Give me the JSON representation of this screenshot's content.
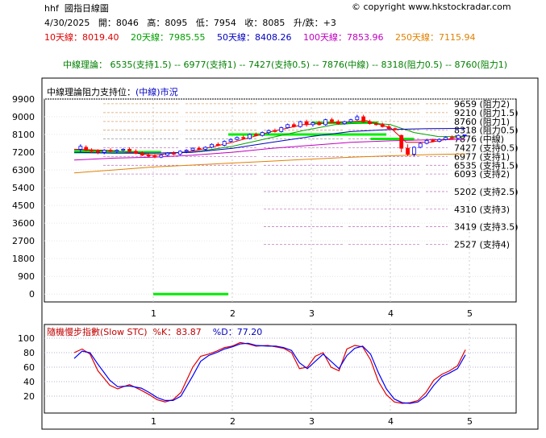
{
  "header": {
    "ticker": "hhf",
    "chart_title": "國指日線圖",
    "copyright": "copyright www.hkstockradar.com",
    "date": "4/30/2025",
    "open_label": "開",
    "open": "8046",
    "high_label": "高",
    "high": "8095",
    "low_label": "低",
    "low": "7954",
    "close_label": "收",
    "close": "8085",
    "change_label": "升/跌",
    "change": "+3"
  },
  "moving_averages": [
    {
      "label": "10天線",
      "value": "8019.40",
      "color": "#e00000"
    },
    {
      "label": "20天線",
      "value": "7985.55",
      "color": "#00a000"
    },
    {
      "label": "50天線",
      "value": "8408.26",
      "color": "#0000c0"
    },
    {
      "label": "100天線",
      "value": "7853.96",
      "color": "#c000c0"
    },
    {
      "label": "250天線",
      "value": "7115.94",
      "color": "#e08000"
    }
  ],
  "theory_line": "中線理論： 6535(支持1.5) -- 6977(支持1) -- 7427(支持0.5) -- 7876(中線) -- 8318(阻力0.5) -- 8760(阻力1)",
  "chart_label_prefix": "中線理論阻力支持位：",
  "chart_label_mid": "(中線)",
  "chart_label_suffix": "市況",
  "stc_title": "隨機慢步指數(Slow STC)",
  "stc_k_label": "%K：",
  "stc_k": "83.87",
  "stc_d_label": "%D：",
  "stc_d": "77.20",
  "colors": {
    "up_candle": "#0000ff",
    "down_candle": "#ff0000",
    "mid_line": "#00ee00",
    "k_line": "#e00000",
    "d_line": "#0000ff"
  },
  "chart_data": [
    {
      "type": "candlestick",
      "ylim": [
        -400,
        9900
      ],
      "yticks": [
        0,
        900,
        1800,
        2700,
        3600,
        4500,
        5400,
        6300,
        7200,
        8100,
        9000,
        9900
      ],
      "xticks": [
        "1",
        "2",
        "3",
        "4",
        "5"
      ],
      "levels": [
        {
          "label": "9659 (阻力2)",
          "value": 9659
        },
        {
          "label": "9210 (阻力1.5)",
          "value": 9210
        },
        {
          "label": "8760 (阻力1)",
          "value": 8760
        },
        {
          "label": "8318 (阻力0.5)",
          "value": 8318
        },
        {
          "label": "7876 (中線)",
          "value": 7876
        },
        {
          "label": "7427 (支持0.5)",
          "value": 7427
        },
        {
          "label": "6977 (支持1)",
          "value": 6977
        },
        {
          "label": "6535 (支持1.5)",
          "value": 6535
        },
        {
          "label": "6093 (支持2)",
          "value": 6093
        },
        {
          "label": "5202 (支持2.5)",
          "value": 5202
        },
        {
          "label": "4310 (支持3)",
          "value": 4310
        },
        {
          "label": "3419 (支持3.5)",
          "value": 3419
        },
        {
          "label": "2527 (支持4)",
          "value": 2527
        }
      ],
      "mid_segments": [
        {
          "from": 0.0,
          "to": 1.1,
          "value": 7200
        },
        {
          "from": 1.0,
          "to": 1.95,
          "value": 0
        },
        {
          "from": 1.95,
          "to": 3.95,
          "value": 8100
        },
        {
          "from": 3.0,
          "to": 3.85,
          "value": 8700
        },
        {
          "from": 3.75,
          "to": 4.3,
          "value": 7876
        }
      ],
      "candles": [
        {
          "x": 0.08,
          "o": 7350,
          "h": 7600,
          "l": 7200,
          "c": 7500
        },
        {
          "x": 0.15,
          "o": 7450,
          "h": 7550,
          "l": 7250,
          "c": 7300
        },
        {
          "x": 0.22,
          "o": 7300,
          "h": 7400,
          "l": 7150,
          "c": 7250
        },
        {
          "x": 0.3,
          "o": 7250,
          "h": 7350,
          "l": 7100,
          "c": 7200
        },
        {
          "x": 0.38,
          "o": 7200,
          "h": 7350,
          "l": 7100,
          "c": 7300
        },
        {
          "x": 0.46,
          "o": 7300,
          "h": 7400,
          "l": 7200,
          "c": 7250
        },
        {
          "x": 0.54,
          "o": 7250,
          "h": 7350,
          "l": 7150,
          "c": 7300
        },
        {
          "x": 0.62,
          "o": 7300,
          "h": 7400,
          "l": 7250,
          "c": 7350
        },
        {
          "x": 0.7,
          "o": 7350,
          "h": 7450,
          "l": 7200,
          "c": 7250
        },
        {
          "x": 0.78,
          "o": 7250,
          "h": 7350,
          "l": 7100,
          "c": 7150
        },
        {
          "x": 0.86,
          "o": 7150,
          "h": 7250,
          "l": 7000,
          "c": 7050
        },
        {
          "x": 0.94,
          "o": 7050,
          "h": 7150,
          "l": 6950,
          "c": 7000
        },
        {
          "x": 1.02,
          "o": 7000,
          "h": 7100,
          "l": 6900,
          "c": 6950
        },
        {
          "x": 1.1,
          "o": 6950,
          "h": 7100,
          "l": 6900,
          "c": 7050
        },
        {
          "x": 1.18,
          "o": 7050,
          "h": 7200,
          "l": 7000,
          "c": 7150
        },
        {
          "x": 1.26,
          "o": 7150,
          "h": 7250,
          "l": 7050,
          "c": 7100
        },
        {
          "x": 1.34,
          "o": 7100,
          "h": 7300,
          "l": 7050,
          "c": 7250
        },
        {
          "x": 1.42,
          "o": 7250,
          "h": 7350,
          "l": 7150,
          "c": 7300
        },
        {
          "x": 1.5,
          "o": 7300,
          "h": 7450,
          "l": 7250,
          "c": 7400
        },
        {
          "x": 1.58,
          "o": 7400,
          "h": 7500,
          "l": 7300,
          "c": 7350
        },
        {
          "x": 1.66,
          "o": 7350,
          "h": 7500,
          "l": 7300,
          "c": 7450
        },
        {
          "x": 1.74,
          "o": 7450,
          "h": 7650,
          "l": 7400,
          "c": 7600
        },
        {
          "x": 1.82,
          "o": 7600,
          "h": 7700,
          "l": 7500,
          "c": 7550
        },
        {
          "x": 1.9,
          "o": 7550,
          "h": 7800,
          "l": 7500,
          "c": 7750
        },
        {
          "x": 1.98,
          "o": 7750,
          "h": 7900,
          "l": 7700,
          "c": 7850
        },
        {
          "x": 2.06,
          "o": 7850,
          "h": 8000,
          "l": 7800,
          "c": 7950
        },
        {
          "x": 2.14,
          "o": 7950,
          "h": 8050,
          "l": 7850,
          "c": 7900
        },
        {
          "x": 2.22,
          "o": 7900,
          "h": 8150,
          "l": 7850,
          "c": 8100
        },
        {
          "x": 2.3,
          "o": 8100,
          "h": 8200,
          "l": 8000,
          "c": 8050
        },
        {
          "x": 2.38,
          "o": 8050,
          "h": 8250,
          "l": 8000,
          "c": 8200
        },
        {
          "x": 2.46,
          "o": 8200,
          "h": 8350,
          "l": 8100,
          "c": 8300
        },
        {
          "x": 2.54,
          "o": 8300,
          "h": 8400,
          "l": 8200,
          "c": 8250
        },
        {
          "x": 2.62,
          "o": 8250,
          "h": 8500,
          "l": 8200,
          "c": 8450
        },
        {
          "x": 2.7,
          "o": 8450,
          "h": 8650,
          "l": 8400,
          "c": 8600
        },
        {
          "x": 2.78,
          "o": 8600,
          "h": 8700,
          "l": 8450,
          "c": 8500
        },
        {
          "x": 2.86,
          "o": 8500,
          "h": 8800,
          "l": 8450,
          "c": 8750
        },
        {
          "x": 2.94,
          "o": 8750,
          "h": 8850,
          "l": 8500,
          "c": 8600
        },
        {
          "x": 3.02,
          "o": 8600,
          "h": 8750,
          "l": 8500,
          "c": 8700
        },
        {
          "x": 3.1,
          "o": 8700,
          "h": 8800,
          "l": 8550,
          "c": 8600
        },
        {
          "x": 3.18,
          "o": 8600,
          "h": 8900,
          "l": 8550,
          "c": 8850
        },
        {
          "x": 3.26,
          "o": 8850,
          "h": 8950,
          "l": 8700,
          "c": 8750
        },
        {
          "x": 3.34,
          "o": 8750,
          "h": 8850,
          "l": 8600,
          "c": 8650
        },
        {
          "x": 3.42,
          "o": 8650,
          "h": 8800,
          "l": 8600,
          "c": 8750
        },
        {
          "x": 3.5,
          "o": 8750,
          "h": 8900,
          "l": 8700,
          "c": 8850
        },
        {
          "x": 3.58,
          "o": 8850,
          "h": 9100,
          "l": 8800,
          "c": 9000
        },
        {
          "x": 3.66,
          "o": 9000,
          "h": 9100,
          "l": 8700,
          "c": 8750
        },
        {
          "x": 3.74,
          "o": 8750,
          "h": 8850,
          "l": 8600,
          "c": 8650
        },
        {
          "x": 3.82,
          "o": 8650,
          "h": 8750,
          "l": 8550,
          "c": 8600
        },
        {
          "x": 3.9,
          "o": 8600,
          "h": 8700,
          "l": 8450,
          "c": 8500
        },
        {
          "x": 3.98,
          "o": 8500,
          "h": 8600,
          "l": 8350,
          "c": 8400
        },
        {
          "x": 4.06,
          "o": 8400,
          "h": 8450,
          "l": 8300,
          "c": 8350
        },
        {
          "x": 4.14,
          "o": 8050,
          "h": 8100,
          "l": 7200,
          "c": 7400
        },
        {
          "x": 4.22,
          "o": 7400,
          "h": 7600,
          "l": 7000,
          "c": 7100
        },
        {
          "x": 4.3,
          "o": 7100,
          "h": 7500,
          "l": 7000,
          "c": 7450
        },
        {
          "x": 4.38,
          "o": 7450,
          "h": 7700,
          "l": 7400,
          "c": 7650
        },
        {
          "x": 4.46,
          "o": 7650,
          "h": 7850,
          "l": 7600,
          "c": 7800
        },
        {
          "x": 4.54,
          "o": 7800,
          "h": 7900,
          "l": 7700,
          "c": 7750
        },
        {
          "x": 4.62,
          "o": 7750,
          "h": 7900,
          "l": 7700,
          "c": 7850
        },
        {
          "x": 4.7,
          "o": 7850,
          "h": 8000,
          "l": 7800,
          "c": 7950
        },
        {
          "x": 4.78,
          "o": 7950,
          "h": 8050,
          "l": 7850,
          "c": 7900
        },
        {
          "x": 4.86,
          "o": 7900,
          "h": 8100,
          "l": 7850,
          "c": 8050
        },
        {
          "x": 4.94,
          "o": 8046,
          "h": 8095,
          "l": 7954,
          "c": 8085
        }
      ],
      "series": [
        {
          "name": "10天線",
          "color": "#e00000",
          "x": [
            0.0,
            0.5,
            1.0,
            1.5,
            2.0,
            2.5,
            2.9,
            3.3,
            3.7,
            4.0,
            4.2,
            4.5,
            4.95
          ],
          "values": [
            7350,
            7280,
            7050,
            7250,
            7700,
            8250,
            8600,
            8700,
            8800,
            8450,
            7700,
            7700,
            8019
          ]
        },
        {
          "name": "20天線",
          "color": "#00a000",
          "x": [
            0.0,
            0.5,
            1.0,
            1.5,
            2.0,
            2.5,
            2.9,
            3.3,
            3.7,
            4.0,
            4.3,
            4.6,
            4.95
          ],
          "values": [
            7300,
            7250,
            7150,
            7200,
            7500,
            7950,
            8300,
            8600,
            8700,
            8600,
            8200,
            8000,
            7986
          ]
        },
        {
          "name": "50天線",
          "color": "#0000c0",
          "x": [
            0.0,
            0.5,
            1.0,
            1.5,
            2.0,
            2.5,
            3.0,
            3.5,
            4.0,
            4.5,
            4.95
          ],
          "values": [
            7200,
            7150,
            7150,
            7200,
            7400,
            7700,
            8000,
            8250,
            8350,
            8400,
            8408
          ]
        },
        {
          "name": "100天線",
          "color": "#c000c0",
          "x": [
            0.0,
            0.5,
            1.0,
            1.5,
            2.0,
            2.5,
            3.0,
            3.5,
            4.0,
            4.5,
            4.95
          ],
          "values": [
            6800,
            6900,
            6950,
            7050,
            7200,
            7400,
            7550,
            7700,
            7780,
            7830,
            7854
          ]
        },
        {
          "name": "250天線",
          "color": "#e08000",
          "x": [
            0.0,
            0.5,
            1.0,
            1.5,
            2.0,
            2.5,
            3.0,
            3.5,
            4.0,
            4.5,
            4.95
          ],
          "values": [
            6150,
            6300,
            6450,
            6550,
            6650,
            6750,
            6850,
            6950,
            7020,
            7080,
            7116
          ]
        }
      ]
    },
    {
      "type": "line",
      "title": "隨機慢步指數(Slow STC)",
      "ylim": [
        0,
        100
      ],
      "yticks": [
        20,
        40,
        60,
        80,
        100
      ],
      "xticks": [
        "1",
        "2",
        "3",
        "4",
        "5"
      ],
      "series": [
        {
          "name": "%K",
          "color": "#e00000",
          "x": [
            0.0,
            0.1,
            0.2,
            0.3,
            0.45,
            0.55,
            0.7,
            0.85,
            0.95,
            1.05,
            1.15,
            1.25,
            1.35,
            1.5,
            1.6,
            1.7,
            1.8,
            1.9,
            2.0,
            2.1,
            2.2,
            2.3,
            2.45,
            2.55,
            2.65,
            2.75,
            2.85,
            2.95,
            3.05,
            3.15,
            3.25,
            3.35,
            3.45,
            3.55,
            3.65,
            3.75,
            3.85,
            3.95,
            4.05,
            4.15,
            4.25,
            4.35,
            4.45,
            4.55,
            4.65,
            4.75,
            4.85,
            4.95
          ],
          "values": [
            80,
            85,
            78,
            55,
            35,
            30,
            36,
            28,
            22,
            15,
            12,
            15,
            25,
            60,
            75,
            78,
            82,
            87,
            89,
            94,
            92,
            89,
            90,
            88,
            86,
            80,
            58,
            60,
            75,
            80,
            60,
            55,
            85,
            90,
            88,
            70,
            40,
            22,
            12,
            10,
            11,
            14,
            25,
            42,
            50,
            55,
            62,
            84
          ]
        },
        {
          "name": "%D",
          "color": "#0000ff",
          "x": [
            0.0,
            0.1,
            0.2,
            0.3,
            0.45,
            0.55,
            0.7,
            0.85,
            0.95,
            1.05,
            1.15,
            1.25,
            1.35,
            1.5,
            1.6,
            1.7,
            1.8,
            1.9,
            2.0,
            2.1,
            2.2,
            2.3,
            2.45,
            2.55,
            2.65,
            2.75,
            2.85,
            2.95,
            3.05,
            3.15,
            3.25,
            3.35,
            3.45,
            3.55,
            3.65,
            3.75,
            3.85,
            3.95,
            4.05,
            4.15,
            4.25,
            4.35,
            4.45,
            4.55,
            4.65,
            4.75,
            4.85,
            4.95
          ],
          "values": [
            72,
            82,
            80,
            64,
            42,
            33,
            34,
            31,
            25,
            18,
            14,
            14,
            20,
            48,
            68,
            76,
            80,
            85,
            88,
            92,
            93,
            90,
            89,
            89,
            87,
            83,
            66,
            58,
            68,
            78,
            68,
            58,
            76,
            86,
            89,
            78,
            52,
            30,
            16,
            11,
            10,
            12,
            20,
            35,
            47,
            52,
            58,
            77
          ]
        }
      ]
    }
  ]
}
